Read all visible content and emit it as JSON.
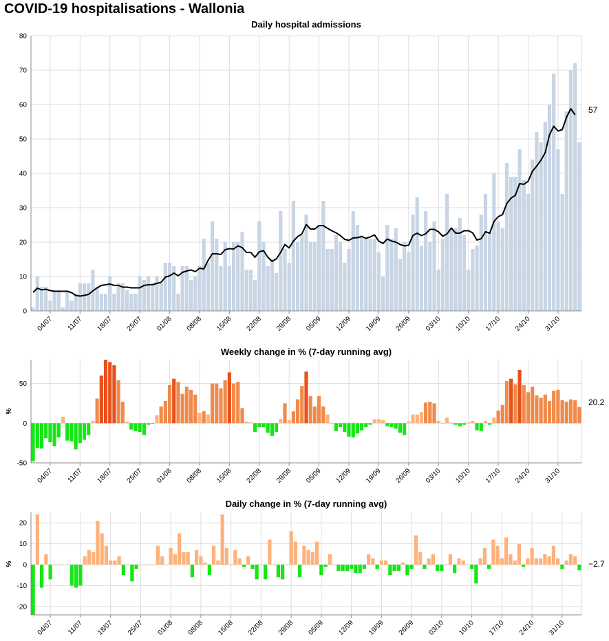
{
  "page": {
    "title": "COVID-19 hospitalisations - Wallonia"
  },
  "colors": {
    "admission_bar": "#c8d5e4",
    "avg_line": "#000000",
    "positive_light": "#fdb27e",
    "positive_mid": "#f08a4b",
    "positive_dark": "#e8501c",
    "negative": "#16e616",
    "grid": "#dddddd",
    "axis": "#888888"
  },
  "x_ticks": [
    "04/07",
    "11/07",
    "18/07",
    "25/07",
    "01/08",
    "08/08",
    "15/08",
    "22/08",
    "29/08",
    "05/09",
    "12/09",
    "19/09",
    "26/09",
    "03/10",
    "10/10",
    "17/10",
    "24/10",
    "31/10"
  ],
  "chart_data": [
    {
      "type": "bar",
      "title": "Daily hospital admissions",
      "xlabel": "",
      "ylabel": "",
      "ylim": [
        0,
        80
      ],
      "yticks": [
        0,
        10,
        20,
        30,
        40,
        50,
        60,
        70,
        80
      ],
      "grid": true,
      "first_date": "30/06",
      "last_value_label": "57",
      "series": [
        {
          "type": "bar",
          "values": [
            1,
            10,
            7,
            7,
            3,
            6,
            6,
            1,
            6,
            3,
            5,
            8,
            8,
            8,
            12,
            7,
            5,
            5,
            10,
            5,
            8,
            8,
            6,
            5,
            5,
            10,
            9,
            10,
            8,
            10,
            8,
            14,
            14,
            13,
            5,
            13,
            13,
            9,
            10,
            13,
            21,
            14,
            26,
            21,
            13,
            20,
            13,
            20,
            20,
            23,
            12,
            12,
            9,
            26,
            20,
            13,
            15,
            11,
            29,
            18,
            14,
            32,
            20,
            22,
            28,
            20,
            20,
            25,
            32,
            18,
            18,
            22,
            20,
            14,
            18,
            29,
            25,
            22,
            21,
            21,
            21,
            17,
            10,
            25,
            21,
            24,
            15,
            20,
            17,
            28,
            33,
            19,
            29,
            20,
            26,
            12,
            21,
            34,
            24,
            24,
            27,
            22,
            12,
            18,
            19,
            28,
            34,
            23,
            40,
            26,
            24,
            43,
            39,
            39,
            47,
            38,
            34,
            44,
            52,
            49,
            55,
            60,
            69,
            47,
            34,
            58,
            70,
            72,
            49
          ]
        },
        {
          "type": "line",
          "values": [
            5.4,
            6.6,
            6.1,
            6.3,
            5.9,
            5.7,
            5.7,
            5.7,
            5.7,
            5.3,
            4.5,
            4.3,
            4.5,
            4.8,
            5.8,
            6.7,
            7.4,
            7.6,
            7.8,
            7.4,
            7.4,
            6.9,
            6.9,
            6.7,
            6.7,
            6.7,
            7.4,
            7.6,
            7.6,
            8.0,
            8.3,
            9.8,
            10.2,
            11.0,
            10.2,
            11.2,
            11.6,
            11.9,
            11.4,
            12.4,
            12.2,
            14.7,
            16.6,
            16.6,
            16.4,
            17.8,
            18.1,
            18.0,
            18.9,
            18.4,
            17.0,
            17.0,
            15.6,
            17.2,
            17.5,
            15.6,
            14.4,
            15.1,
            17.0,
            19.3,
            18.3,
            20.3,
            21.6,
            22.4,
            25.1,
            23.8,
            23.8,
            24.8,
            24.8,
            24.0,
            23.3,
            22.7,
            21.9,
            20.8,
            20.5,
            21.2,
            21.3,
            21.6,
            21.1,
            21.5,
            22.1,
            20.3,
            19.6,
            20.9,
            20.3,
            20.0,
            19.3,
            18.9,
            19.1,
            21.9,
            22.6,
            21.9,
            22.4,
            23.7,
            23.7,
            23.0,
            21.7,
            22.4,
            24.1,
            22.6,
            22.6,
            23.3,
            23.3,
            22.7,
            20.6,
            21.0,
            23.0,
            22.6,
            26.0,
            27.4,
            28.0,
            31.2,
            32.8,
            33.6,
            37.0,
            36.8,
            37.7,
            40.6,
            42.1,
            43.8,
            46.0,
            51.2,
            53.7,
            52.3,
            52.7,
            56.3,
            58.8,
            57.0
          ]
        }
      ]
    },
    {
      "type": "bar",
      "title": "Weekly change in % (7-day running avg)",
      "xlabel": "",
      "ylabel": "%",
      "ylim": [
        -50,
        80
      ],
      "yticks": [
        -50,
        0,
        50
      ],
      "grid": true,
      "last_value_label": "20.2",
      "values": [
        -48,
        -31,
        -32,
        -19,
        -24,
        -29,
        -18,
        8,
        -22,
        -23,
        -33,
        -25,
        -21,
        -15,
        3,
        31,
        60,
        80,
        77,
        73,
        54,
        27,
        2,
        -8,
        -10,
        -11,
        -15,
        -2,
        -1,
        10,
        21,
        28,
        48,
        56,
        52,
        37,
        46,
        42,
        36,
        13,
        15,
        11,
        50,
        50,
        44,
        54,
        64,
        50,
        52,
        19,
        2,
        1,
        -11,
        -5,
        -5,
        -12,
        -16,
        -11,
        5,
        25,
        4,
        15,
        30,
        47,
        65,
        34,
        21,
        34,
        21,
        11,
        0,
        -10,
        -5,
        -11,
        -17,
        -18,
        -13,
        -9,
        -5,
        -2,
        5,
        5,
        4,
        -4,
        -5,
        -7,
        -12,
        -15,
        2,
        11,
        11,
        14,
        26,
        27,
        25,
        3,
        0,
        7,
        0,
        -2,
        -4,
        -2,
        1,
        3,
        -9,
        -10,
        3,
        -2,
        7,
        16,
        23,
        53,
        56,
        49,
        67,
        48,
        39,
        46,
        35,
        32,
        36,
        28,
        41,
        42,
        29,
        27,
        30,
        29,
        20.2
      ]
    },
    {
      "type": "bar",
      "title": "Daily change in % (7-day running avg)",
      "xlabel": "",
      "ylabel": "%",
      "ylim": [
        -24,
        25
      ],
      "yticks": [
        -20,
        -10,
        0,
        10,
        20
      ],
      "grid": true,
      "last_value_label": "−2.7",
      "values": [
        -24,
        24,
        -11,
        5,
        -7,
        0,
        0,
        0,
        0,
        -10,
        -11,
        -10,
        4,
        7,
        6,
        21,
        15,
        9,
        2,
        2,
        4,
        -5,
        0,
        -8,
        -2,
        0,
        0,
        0,
        0,
        9,
        4,
        0,
        8,
        5,
        15,
        6,
        6,
        -6,
        7,
        4,
        1,
        -5,
        9,
        2,
        24,
        8,
        0,
        7,
        3,
        -1,
        4,
        -2,
        -7,
        0,
        -7,
        12,
        0,
        -6,
        -7,
        0,
        16,
        11,
        -6,
        9,
        7,
        6,
        11,
        -5,
        -1,
        5,
        0,
        -3,
        -3,
        -3,
        -2,
        -4,
        -4,
        -2,
        5,
        3,
        -2,
        2,
        2,
        -5,
        -3,
        -3,
        1,
        -5,
        -2,
        14,
        6,
        -2,
        3,
        5,
        -3,
        -3,
        0,
        5,
        -4,
        3,
        2,
        0,
        -2,
        -9,
        3,
        8,
        -2,
        12,
        9,
        3,
        13,
        5,
        2,
        10,
        -1,
        3,
        8,
        3,
        3,
        5,
        4,
        9,
        3,
        -2,
        2,
        5,
        4,
        -2.7
      ]
    }
  ]
}
